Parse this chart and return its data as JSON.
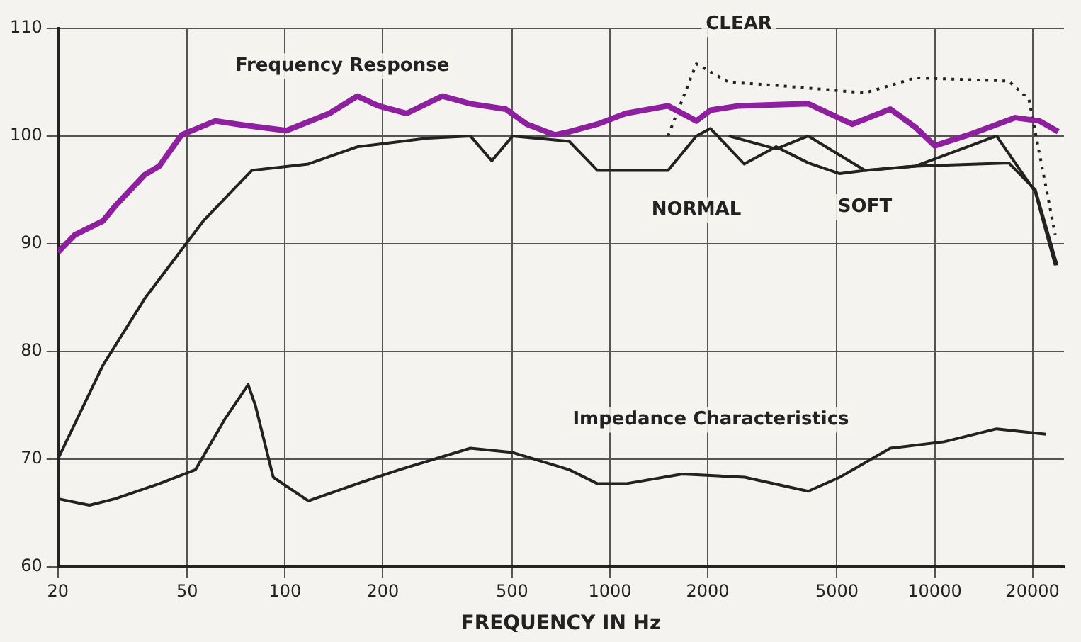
{
  "chart_data": {
    "type": "line",
    "xlabel": "FREQUENCY IN Hz",
    "log": "x",
    "xlim": [
      20,
      25000
    ],
    "xticks": [
      20,
      50,
      100,
      200,
      500,
      1000,
      2000,
      5000,
      10000,
      20000
    ],
    "ylim": [
      60,
      110
    ],
    "yticks": [
      60,
      70,
      80,
      90,
      100,
      110
    ],
    "grid": true,
    "legend": false,
    "marker": "none",
    "series": [
      {
        "color": "#8e1f9e",
        "x": [
          20,
          22.5,
          27.5,
          30,
          37,
          41,
          48,
          61,
          75,
          101,
          137,
          167,
          194,
          237,
          305,
          372,
          478,
          555,
          678,
          750,
          916,
          1120,
          1510,
          1846,
          2040,
          2490,
          4080,
          5570,
          7300,
          8730,
          10000,
          12700,
          17700,
          21000,
          24000
        ],
        "values": [
          89.2,
          90.8,
          92.1,
          93.5,
          96.4,
          97.2,
          100.1,
          101.4,
          101.0,
          100.5,
          102.1,
          103.7,
          102.8,
          102.1,
          103.7,
          103.0,
          102.5,
          101.1,
          100.1,
          100.4,
          101.1,
          102.1,
          102.8,
          101.4,
          102.4,
          102.8,
          103.0,
          101.1,
          102.5,
          100.8,
          99.1,
          100.1,
          101.7,
          101.4,
          100.4
        ]
      },
      {
        "name": "NORMAL",
        "color": "#222222",
        "x": [
          20,
          27.5,
          37,
          56,
          79,
          118,
          167,
          275,
          372,
          433,
          502,
          750,
          916,
          1510,
          1846,
          2040,
          2590,
          3250,
          4080,
          5100,
          6100,
          8730,
          16900,
          20400,
          23800
        ],
        "values": [
          70,
          78.7,
          84.9,
          92.1,
          96.8,
          97.4,
          99,
          99.8,
          100,
          97.7,
          100,
          99.5,
          96.8,
          96.8,
          100,
          100.7,
          97.4,
          99,
          97.5,
          96.5,
          96.8,
          97.2,
          97.5,
          95,
          88
        ]
      },
      {
        "name": "CLEAR",
        "color": "#222222",
        "line_style": "dotted",
        "x": [
          1510,
          1846,
          2320,
          3250,
          6100,
          8730,
          16900,
          19500,
          23500
        ],
        "values": [
          100,
          106.7,
          105,
          104.7,
          104,
          105.4,
          105.1,
          103.4,
          90.8
        ]
      },
      {
        "name": "SOFT",
        "color": "#222222",
        "x": [
          2320,
          3250,
          4080,
          6100,
          8730,
          15500,
          20400,
          23500
        ],
        "values": [
          100,
          98.8,
          100,
          96.8,
          97.2,
          100,
          94.8,
          88
        ]
      },
      {
        "name": "Impedance Characteristics",
        "color": "#222222",
        "x": [
          20,
          25,
          30,
          41,
          53,
          65,
          77,
          81,
          92,
          118,
          167,
          225,
          372,
          502,
          750,
          916,
          1120,
          1670,
          2600,
          4080,
          5100,
          7300,
          10700,
          15500,
          22000
        ],
        "values": [
          66.3,
          65.7,
          66.3,
          67.7,
          69,
          73.6,
          76.9,
          75,
          68.3,
          66.1,
          67.7,
          69,
          71,
          70.6,
          69,
          67.7,
          67.7,
          68.6,
          68.3,
          67,
          68.3,
          71,
          71.6,
          72.8,
          72.3
        ]
      }
    ],
    "annotations": [
      "Frequency Response"
    ]
  }
}
